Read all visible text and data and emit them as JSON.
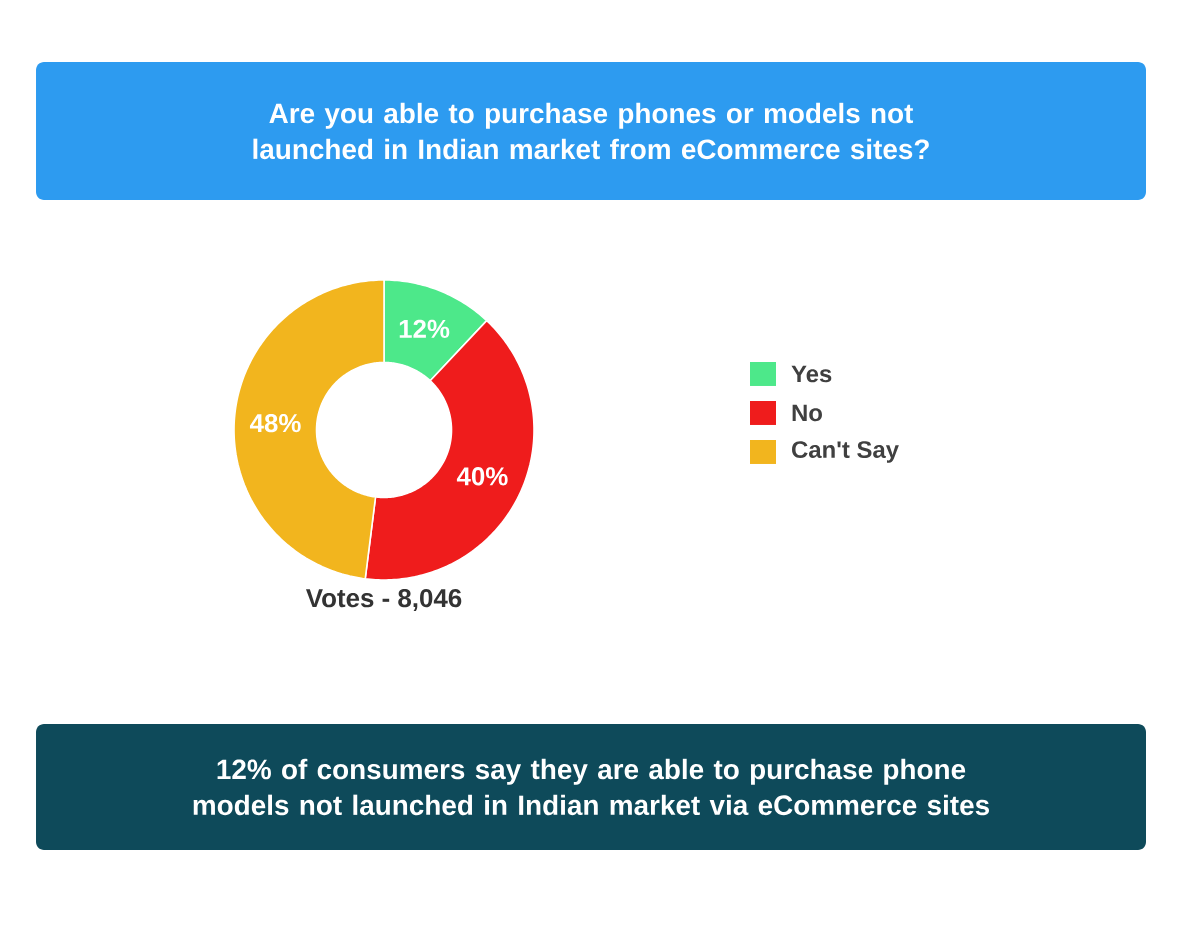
{
  "chart_data": {
    "type": "donut",
    "title": "Are you able to purchase phones or models not launched in Indian market from eCommerce sites?",
    "categories": [
      "Yes",
      "No",
      "Can't Say"
    ],
    "values": [
      12,
      40,
      48
    ],
    "colors": [
      "#4de88a",
      "#ef1c1c",
      "#f2b51e"
    ],
    "value_labels": [
      "12%",
      "40%",
      "48%"
    ],
    "legend": "right",
    "annotations": [
      "Votes - 8,046",
      "12% of consumers say they are able to purchase phone models not launched in Indian market via eCommerce sites"
    ]
  }
}
